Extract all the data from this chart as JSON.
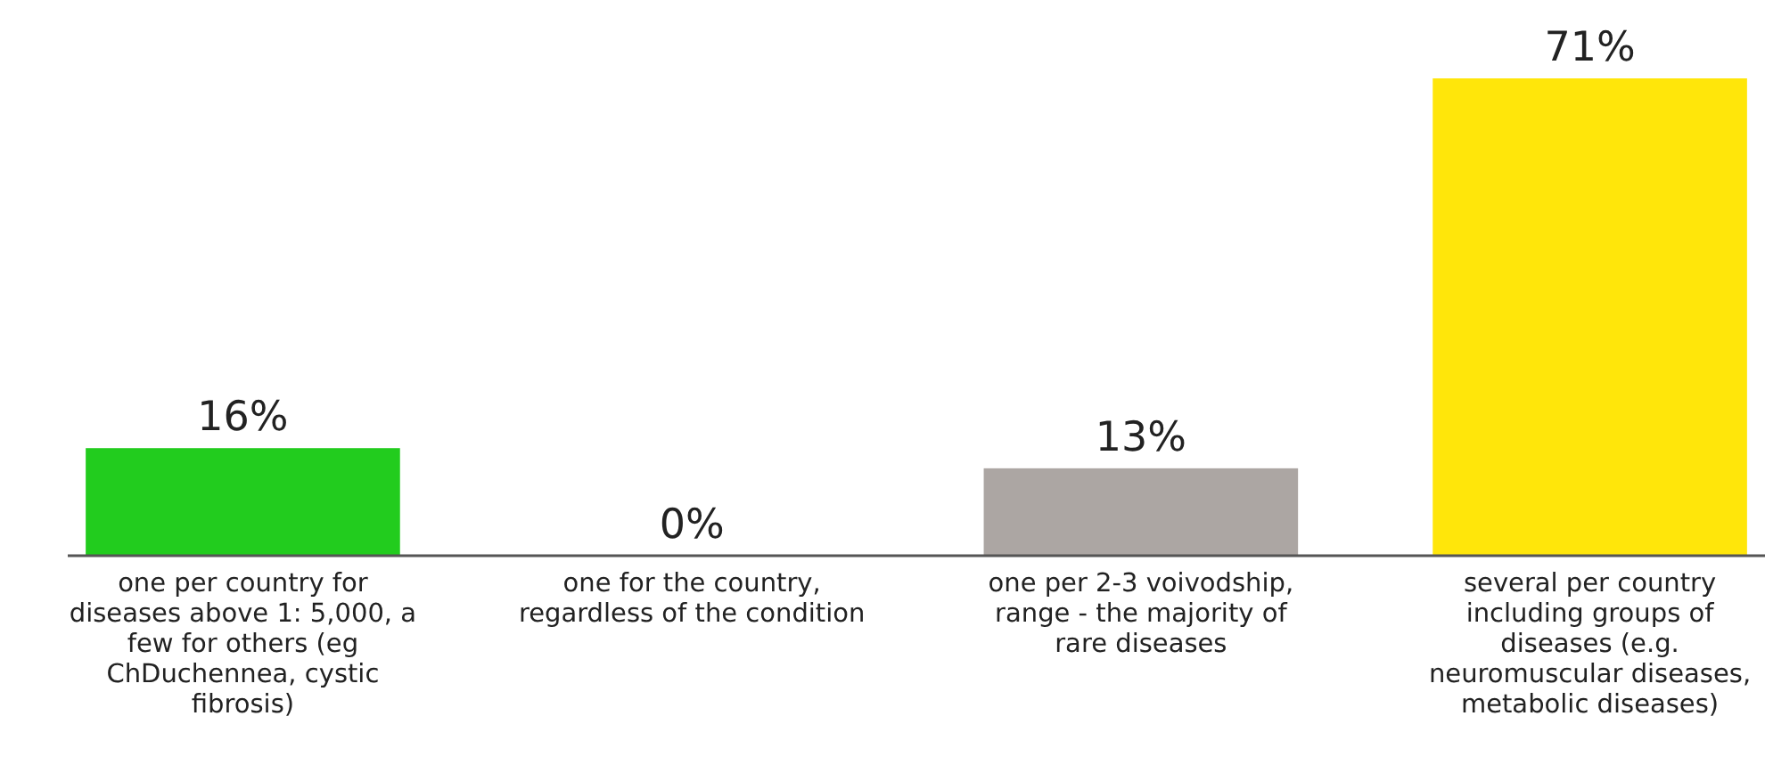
{
  "chart_data": {
    "type": "bar",
    "categories": [
      "one per country for diseases above 1: 5,000, a few for others (eg ChDuchennea, cystic fibrosis)",
      "one for the country, regardless of the condition",
      "one per 2-3 voivodship, range - the majority of rare diseases",
      "several per country including groups of diseases (e.g. neuromuscular diseases, metabolic diseases)"
    ],
    "values": [
      16,
      0,
      13,
      71
    ],
    "colors": [
      "#22cc1e",
      "#ffffff",
      "#aca6a3",
      "#ffe60a"
    ],
    "value_labels": [
      "16%",
      "0%",
      "13%",
      "71%"
    ]
  }
}
